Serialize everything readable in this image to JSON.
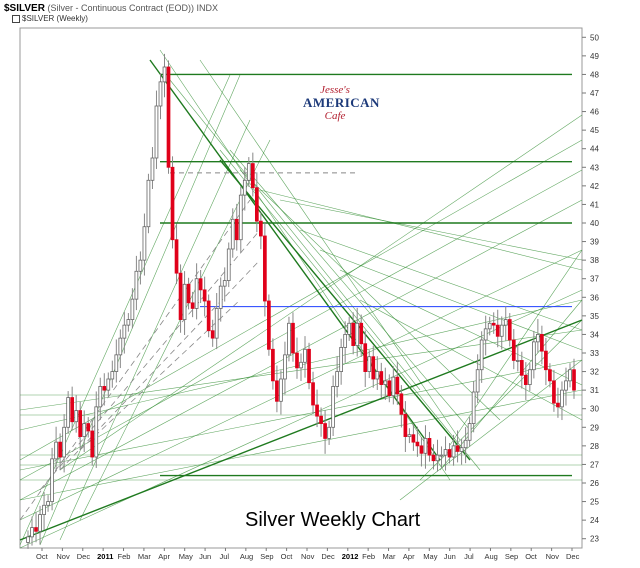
{
  "header": {
    "symbol": "$SILVER",
    "description": "(Silver - Continuous Contract (EOD))",
    "exchange": "INDX",
    "sub_label": "$SILVER (Weekly)"
  },
  "logo": {
    "line1": "Jesse's",
    "line2": "AMERICAN",
    "line3": "Cafe"
  },
  "colors": {
    "up_candle": "#ffffff",
    "down_candle": "#e0001a",
    "wick": "#888888",
    "trendline": "#2e8b2e",
    "resistance": "#1f3fff",
    "dashed": "#888888"
  },
  "chart_data": {
    "type": "candlestick",
    "title": "Silver Weekly Chart",
    "ylim": [
      22.5,
      50.5
    ],
    "y_ticks": [
      23,
      24,
      25,
      26,
      27,
      28,
      29,
      30,
      31,
      32,
      33,
      34,
      35,
      36,
      37,
      38,
      39,
      40,
      41,
      42,
      43,
      44,
      45,
      46,
      47,
      48,
      49,
      50
    ],
    "x_ticks": [
      {
        "label": "Oct",
        "year": false
      },
      {
        "label": "Nov",
        "year": false
      },
      {
        "label": "Dec",
        "year": false
      },
      {
        "label": "2011",
        "year": true
      },
      {
        "label": "Feb",
        "year": false
      },
      {
        "label": "Mar",
        "year": false
      },
      {
        "label": "Apr",
        "year": false
      },
      {
        "label": "May",
        "year": false
      },
      {
        "label": "Jun",
        "year": false
      },
      {
        "label": "Jul",
        "year": false
      },
      {
        "label": "Aug",
        "year": false
      },
      {
        "label": "Sep",
        "year": false
      },
      {
        "label": "Oct",
        "year": false
      },
      {
        "label": "Nov",
        "year": false
      },
      {
        "label": "Dec",
        "year": false
      },
      {
        "label": "2012",
        "year": true
      },
      {
        "label": "Feb",
        "year": false
      },
      {
        "label": "Mar",
        "year": false
      },
      {
        "label": "Apr",
        "year": false
      },
      {
        "label": "May",
        "year": false
      },
      {
        "label": "Jun",
        "year": false
      },
      {
        "label": "Jul",
        "year": false
      },
      {
        "label": "Aug",
        "year": false
      },
      {
        "label": "Sep",
        "year": false
      },
      {
        "label": "Oct",
        "year": false
      },
      {
        "label": "Nov",
        "year": false
      },
      {
        "label": "Dec",
        "year": false
      }
    ],
    "closes": [
      23.1,
      23.6,
      23.4,
      24.3,
      24.8,
      25.0,
      27.3,
      28.2,
      27.4,
      29.0,
      30.6,
      29.3,
      29.9,
      28.5,
      29.2,
      28.8,
      27.4,
      30.1,
      31.2,
      31.0,
      31.6,
      32.0,
      32.9,
      33.8,
      34.5,
      34.8,
      35.9,
      37.4,
      38.0,
      39.8,
      42.3,
      43.5,
      46.3,
      47.6,
      48.4,
      43.0,
      39.1,
      37.3,
      34.8,
      36.7,
      35.7,
      35.4,
      37.0,
      36.4,
      35.8,
      34.2,
      33.8,
      35.4,
      36.6,
      36.9,
      38.6,
      40.2,
      39.1,
      41.5,
      42.3,
      43.2,
      41.9,
      40.1,
      39.3,
      35.8,
      33.2,
      31.5,
      30.4,
      31.6,
      32.9,
      34.6,
      33.0,
      32.2,
      32.5,
      33.2,
      31.4,
      30.2,
      29.6,
      29.2,
      28.4,
      29.0,
      31.2,
      32.0,
      33.3,
      34.0,
      34.6,
      33.4,
      34.6,
      33.5,
      32.0,
      32.8,
      31.6,
      32.0,
      31.3,
      31.5,
      30.7,
      31.7,
      30.8,
      29.7,
      28.5,
      28.6,
      28.2,
      28.0,
      27.6,
      28.4,
      27.5,
      27.2,
      27.5,
      27.5,
      27.8,
      27.4,
      28.0,
      27.7,
      27.9,
      28.3,
      29.2,
      30.9,
      32.1,
      33.7,
      34.3,
      34.6,
      34.5,
      33.9,
      34.5,
      34.8,
      33.7,
      32.6,
      32.6,
      31.8,
      31.3,
      32.1,
      33.6,
      34.0,
      33.1,
      32.1,
      31.5,
      30.3,
      30.1,
      31.0,
      31.5,
      32.1,
      31.0
    ]
  }
}
